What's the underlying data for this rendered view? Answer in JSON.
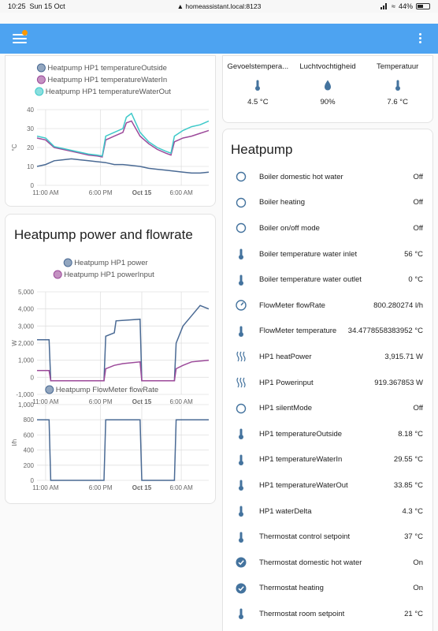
{
  "status_bar": {
    "time": "10:25",
    "date": "Sun 15 Oct",
    "url": "homeassistant.local:8123",
    "battery": "44%"
  },
  "colors": {
    "toolbar": "#4da3f1",
    "outside": "#4a6a94",
    "water_in": "#9c4a9a",
    "water_out": "#3ec9c9",
    "icon": "#44739e",
    "accent": "#ff9800"
  },
  "temp_card": {
    "legend": [
      "Heatpump HP1 temperatureOutside",
      "Heatpump HP1 temperatureWaterIn",
      "Heatpump HP1 temperatureWaterOut"
    ],
    "ylabel": "°C",
    "yticks": [
      "40",
      "30",
      "20",
      "10",
      "0"
    ],
    "xticks": [
      "11:00 AM",
      "6:00 PM",
      "Oct 15",
      "6:00 AM"
    ]
  },
  "power_card": {
    "title": "Heatpump power and flowrate",
    "legend": [
      "Heatpump HP1 power",
      "Heatpump HP1 powerInput"
    ],
    "ylabel": "W",
    "yticks": [
      "5,000",
      "4,000",
      "3,000",
      "2,000",
      "1,000",
      "0",
      "-1,000"
    ],
    "xticks": [
      "11:00 AM",
      "6:00 PM",
      "Oct 15",
      "6:00 AM"
    ]
  },
  "flow_card": {
    "legend": [
      "Heatpump FlowMeter flowRate"
    ],
    "ylabel": "l/h",
    "yticks": [
      "1,000",
      "800",
      "600",
      "400",
      "200",
      "0"
    ],
    "xticks": [
      "11:00 AM",
      "6:00 PM",
      "Oct 15",
      "6:00 AM"
    ]
  },
  "sensors": [
    {
      "name": "Gevoelstempera...",
      "value": "4.5 °C",
      "icon": "thermometer-icon"
    },
    {
      "name": "Luchtvochtigheid",
      "value": "90%",
      "icon": "water-percent-icon"
    },
    {
      "name": "Temperatuur",
      "value": "7.6 °C",
      "icon": "thermometer-icon"
    }
  ],
  "heatpump": {
    "title": "Heatpump",
    "entities": [
      {
        "name": "Boiler domestic hot water",
        "state": "Off",
        "icon": "circle-outline-icon"
      },
      {
        "name": "Boiler heating",
        "state": "Off",
        "icon": "circle-outline-icon"
      },
      {
        "name": "Boiler on/off mode",
        "state": "Off",
        "icon": "circle-outline-icon"
      },
      {
        "name": "Boiler temperature water inlet",
        "state": "56 °C",
        "icon": "thermometer-icon"
      },
      {
        "name": "Boiler temperature water outlet",
        "state": "0 °C",
        "icon": "thermometer-icon"
      },
      {
        "name": "FlowMeter flowRate",
        "state": "800.280274 l/h",
        "icon": "gauge-icon"
      },
      {
        "name": "FlowMeter temperature",
        "state": "34.4778558383952 °C",
        "icon": "thermometer-icon"
      },
      {
        "name": "HP1 heatPower",
        "state": "3,915.71 W",
        "icon": "heat-wave-icon"
      },
      {
        "name": "HP1 Powerinput",
        "state": "919.367853 W",
        "icon": "heat-wave-icon"
      },
      {
        "name": "HP1 silentMode",
        "state": "Off",
        "icon": "circle-outline-icon"
      },
      {
        "name": "HP1 temperatureOutside",
        "state": "8.18 °C",
        "icon": "thermometer-icon"
      },
      {
        "name": "HP1 temperatureWaterIn",
        "state": "29.55 °C",
        "icon": "thermometer-icon"
      },
      {
        "name": "HP1 temperatureWaterOut",
        "state": "33.85 °C",
        "icon": "thermometer-icon"
      },
      {
        "name": "HP1 waterDelta",
        "state": "4.3 °C",
        "icon": "thermometer-icon"
      },
      {
        "name": "Thermostat control setpoint",
        "state": "37 °C",
        "icon": "thermometer-icon"
      },
      {
        "name": "Thermostat domestic hot water",
        "state": "On",
        "icon": "check-circle-icon"
      },
      {
        "name": "Thermostat heating",
        "state": "On",
        "icon": "check-circle-icon"
      },
      {
        "name": "Thermostat room setpoint",
        "state": "21 °C",
        "icon": "thermometer-icon"
      }
    ]
  },
  "chart_data": [
    {
      "type": "line",
      "ylabel": "°C",
      "ylim": [
        0,
        40
      ],
      "x_ticks": [
        "11:00 AM",
        "6:00 PM",
        "Oct 15",
        "6:00 AM"
      ],
      "series": [
        {
          "name": "Heatpump HP1 temperatureOutside",
          "x": [
            0,
            0.05,
            0.1,
            0.15,
            0.2,
            0.25,
            0.3,
            0.35,
            0.4,
            0.45,
            0.5,
            0.55,
            0.6,
            0.65,
            0.7,
            0.75,
            0.8,
            0.85,
            0.9,
            0.95,
            1.0
          ],
          "y": [
            10,
            11,
            13,
            13.5,
            14,
            13.5,
            13,
            12.5,
            12,
            11,
            11,
            10.5,
            10,
            9,
            8.5,
            8,
            7.5,
            7,
            6.5,
            6.5,
            7
          ]
        },
        {
          "name": "Heatpump HP1 temperatureWaterIn",
          "x": [
            0,
            0.05,
            0.1,
            0.15,
            0.2,
            0.25,
            0.3,
            0.35,
            0.38,
            0.4,
            0.45,
            0.5,
            0.52,
            0.55,
            0.6,
            0.65,
            0.7,
            0.75,
            0.78,
            0.8,
            0.85,
            0.9,
            0.95,
            1.0
          ],
          "y": [
            25,
            24,
            20,
            19,
            18,
            17,
            16,
            15.5,
            15,
            24,
            26,
            28,
            33,
            34,
            26,
            22,
            19,
            17,
            16,
            23,
            25,
            26,
            27.5,
            29
          ]
        },
        {
          "name": "Heatpump HP1 temperatureWaterOut",
          "x": [
            0,
            0.05,
            0.1,
            0.15,
            0.2,
            0.25,
            0.3,
            0.35,
            0.38,
            0.4,
            0.45,
            0.5,
            0.52,
            0.55,
            0.6,
            0.65,
            0.7,
            0.75,
            0.78,
            0.8,
            0.85,
            0.9,
            0.95,
            1.0
          ],
          "y": [
            26,
            25,
            20.5,
            19.5,
            18.5,
            17.5,
            16.5,
            16,
            15.5,
            26,
            28,
            30,
            36,
            38,
            28,
            23,
            20,
            18,
            17,
            26,
            29,
            31,
            32,
            34
          ]
        }
      ]
    },
    {
      "type": "line",
      "ylabel": "W",
      "ylim": [
        -1000,
        5000
      ],
      "x_ticks": [
        "11:00 AM",
        "6:00 PM",
        "Oct 15",
        "6:00 AM"
      ],
      "series": [
        {
          "name": "Heatpump HP1 power",
          "x": [
            0,
            0.07,
            0.08,
            0.39,
            0.4,
            0.45,
            0.46,
            0.6,
            0.61,
            0.8,
            0.81,
            0.85,
            0.9,
            0.95,
            1.0
          ],
          "y": [
            2200,
            2200,
            -200,
            -200,
            2400,
            2600,
            3300,
            3400,
            -200,
            -200,
            2000,
            3000,
            3600,
            4200,
            4000
          ]
        },
        {
          "name": "Heatpump HP1 powerInput",
          "x": [
            0,
            0.07,
            0.08,
            0.39,
            0.4,
            0.45,
            0.5,
            0.6,
            0.61,
            0.8,
            0.81,
            0.85,
            0.9,
            1.0
          ],
          "y": [
            400,
            400,
            -200,
            -200,
            500,
            700,
            800,
            900,
            -200,
            -200,
            500,
            700,
            900,
            1000
          ]
        }
      ]
    },
    {
      "type": "line",
      "ylabel": "l/h",
      "ylim": [
        0,
        1000
      ],
      "x_ticks": [
        "11:00 AM",
        "6:00 PM",
        "Oct 15",
        "6:00 AM"
      ],
      "series": [
        {
          "name": "Heatpump FlowMeter flowRate",
          "x": [
            0,
            0.07,
            0.08,
            0.39,
            0.4,
            0.6,
            0.61,
            0.8,
            0.81,
            1.0
          ],
          "y": [
            800,
            800,
            0,
            0,
            800,
            800,
            0,
            0,
            800,
            800
          ]
        }
      ]
    }
  ]
}
